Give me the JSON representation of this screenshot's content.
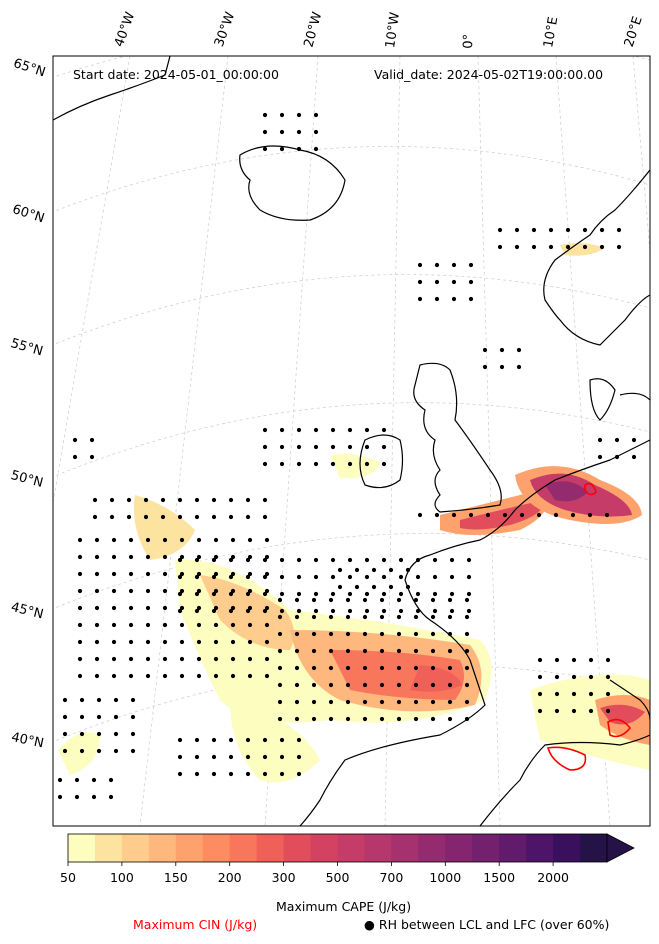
{
  "header": {
    "start_label": "Start date: 2024-05-01_00:00:00",
    "valid_label": "Valid_date: 2024-05-02T19:00:00.00"
  },
  "lon_labels": [
    "40°W",
    "30°W",
    "20°W",
    "10°W",
    "0°",
    "10°E",
    "20°E"
  ],
  "lat_labels": [
    "65°N",
    "60°N",
    "55°N",
    "50°N",
    "45°N",
    "40°N"
  ],
  "colorbar": {
    "ticks": [
      "50",
      "100",
      "150",
      "200",
      "300",
      "500",
      "700",
      "1000",
      "1500",
      "2000"
    ],
    "colors": [
      "#fcfdbf",
      "#fde3a0",
      "#fecc8c",
      "#feb77c",
      "#fea26d",
      "#fd8c63",
      "#f8765c",
      "#ee6058",
      "#e24d5c",
      "#d44262",
      "#c53c68",
      "#b5376c",
      "#a5316e",
      "#952b6f",
      "#85246f",
      "#73206e",
      "#621a6c",
      "#4e1468",
      "#3a0f5c",
      "#251347"
    ],
    "label": "Maximum CAPE (J/kg)"
  },
  "legend": {
    "cin_label": "Maximum CIN (J/kg)",
    "cin_color": "#ff0000",
    "rh_symbol": "●",
    "rh_label": "RH between LCL and LFC (over 60%)"
  }
}
